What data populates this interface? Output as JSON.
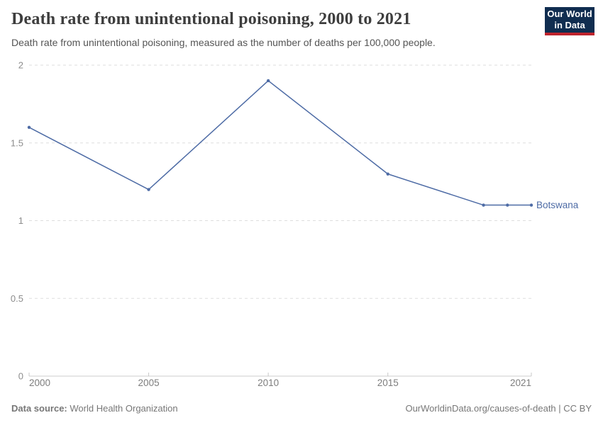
{
  "header": {
    "title": "Death rate from unintentional poisoning, 2000 to 2021",
    "subtitle": "Death rate from unintentional poisoning, measured as the number of deaths per 100,000 people.",
    "logo": {
      "line1": "Our World",
      "line2": "in Data"
    }
  },
  "chart_data": {
    "type": "line",
    "title": "Death rate from unintentional poisoning, 2000 to 2021",
    "xlabel": "",
    "ylabel": "Deaths per 100,000 people",
    "xlim": [
      2000,
      2021
    ],
    "ylim": [
      0,
      2
    ],
    "x_tick_values": [
      2000,
      2005,
      2010,
      2015,
      2021
    ],
    "x_tick_labels": [
      "2000",
      "2005",
      "2010",
      "2015",
      "2021"
    ],
    "y_tick_values": [
      0,
      0.5,
      1,
      1.5,
      2
    ],
    "y_tick_labels": [
      "0",
      "0.5",
      "1",
      "1.5",
      "2"
    ],
    "grid": "horizontal-dashed",
    "legend_position": "label-at-line-end",
    "series": [
      {
        "name": "Botswana",
        "x": [
          2000,
          2005,
          2010,
          2015,
          2019,
          2020,
          2021
        ],
        "values": [
          1.6,
          1.2,
          1.9,
          1.3,
          1.1,
          1.1,
          1.1
        ]
      }
    ]
  },
  "footer": {
    "source_label": "Data source:",
    "source_value": "World Health Organization",
    "credit": "OurWorldinData.org/causes-of-death | CC BY"
  },
  "colors": {
    "line": "#4d6ba5",
    "grid": "#dddddd",
    "axis_line": "#cccccc",
    "tick_mark": "#c8c8c8",
    "y_tick_label": "#8c8c8c",
    "x_tick_label": "#7d7d7d",
    "title": "#3d3d3d",
    "subtitle": "#555555",
    "footer_text": "#777777",
    "logo_bg": "#102d50",
    "logo_accent": "#be232d"
  }
}
